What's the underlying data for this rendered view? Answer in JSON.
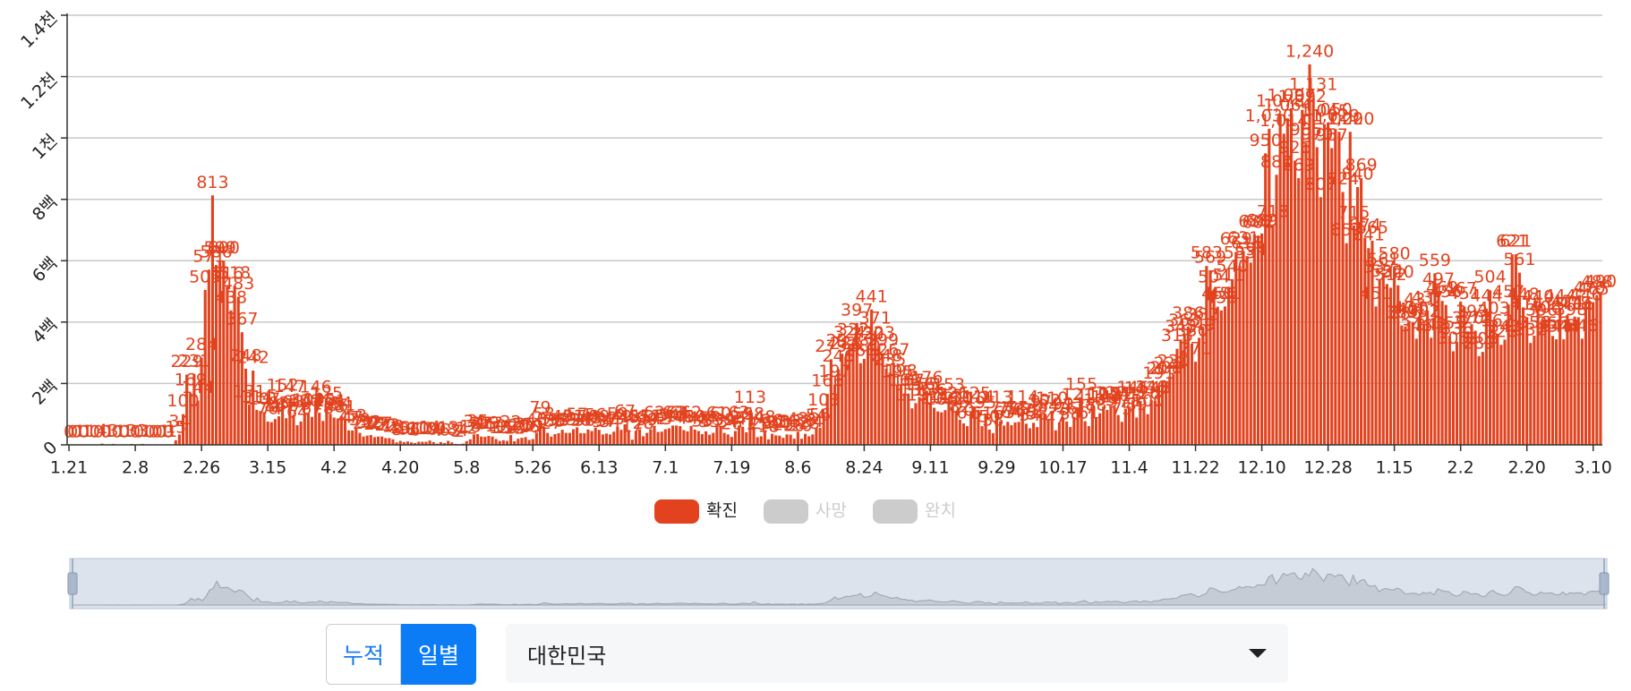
{
  "chart_data": {
    "type": "bar",
    "color": "#e2431e",
    "ylim": [
      0,
      1400
    ],
    "yticks": [
      0,
      {
        "value": 200,
        "label": "2백"
      },
      {
        "value": 400,
        "label": "4백"
      },
      {
        "value": 600,
        "label": "6백"
      },
      {
        "value": 800,
        "label": "8백"
      },
      {
        "value": 1000,
        "label": "1천"
      },
      {
        "value": 1200,
        "label": "1.2천"
      },
      {
        "value": 1400,
        "label": "1.4천"
      }
    ],
    "grid": true,
    "legend": [
      {
        "name": "확진",
        "color": "#e2431e",
        "hidden": false
      },
      {
        "name": "사망",
        "color": "#cccccc",
        "hidden": true
      },
      {
        "name": "완치",
        "color": "#cccccc",
        "hidden": true
      }
    ],
    "categories": [
      "1.21",
      null,
      null,
      null,
      null,
      null,
      null,
      null,
      null,
      null,
      null,
      null,
      null,
      null,
      null,
      null,
      null,
      null,
      "2.8",
      null,
      null,
      null,
      null,
      null,
      null,
      null,
      null,
      null,
      null,
      null,
      null,
      null,
      null,
      null,
      null,
      null,
      "2.26",
      null,
      null,
      null,
      null,
      null,
      null,
      null,
      null,
      null,
      null,
      null,
      null,
      null,
      null,
      null,
      null,
      null,
      "3.15",
      null,
      null,
      null,
      null,
      null,
      null,
      null,
      null,
      null,
      null,
      null,
      null,
      null,
      null,
      null,
      null,
      null,
      "4.2",
      null,
      null,
      null,
      null,
      null,
      null,
      null,
      null,
      null,
      null,
      null,
      null,
      null,
      null,
      null,
      null,
      null,
      "4.20",
      null,
      null,
      null,
      null,
      null,
      null,
      null,
      null,
      null,
      null,
      null,
      null,
      null,
      null,
      null,
      null,
      null,
      "5.8",
      null,
      null,
      null,
      null,
      null,
      null,
      null,
      null,
      null,
      null,
      null,
      null,
      null,
      null,
      null,
      null,
      null,
      "5.26",
      null,
      null,
      null,
      null,
      null,
      null,
      null,
      null,
      null,
      null,
      null,
      null,
      null,
      null,
      null,
      null,
      null,
      "6.13",
      null,
      null,
      null,
      null,
      null,
      null,
      null,
      null,
      null,
      null,
      null,
      null,
      null,
      null,
      null,
      null,
      null,
      "7.1",
      null,
      null,
      null,
      null,
      null,
      null,
      null,
      null,
      null,
      null,
      null,
      null,
      null,
      null,
      null,
      null,
      null,
      "7.19",
      null,
      null,
      null,
      null,
      null,
      null,
      null,
      null,
      null,
      null,
      null,
      null,
      null,
      null,
      null,
      null,
      null,
      "8.6",
      null,
      null,
      null,
      null,
      null,
      null,
      null,
      null,
      null,
      null,
      null,
      null,
      null,
      null,
      null,
      null,
      null,
      "8.24",
      null,
      null,
      null,
      null,
      null,
      null,
      null,
      null,
      null,
      null,
      null,
      null,
      null,
      null,
      null,
      null,
      null,
      "9.11",
      null,
      null,
      null,
      null,
      null,
      null,
      null,
      null,
      null,
      null,
      null,
      null,
      null,
      null,
      null,
      null,
      null,
      "9.29",
      null,
      null,
      null,
      null,
      null,
      null,
      null,
      null,
      null,
      null,
      null,
      null,
      null,
      null,
      null,
      null,
      null,
      "10.17",
      null,
      null,
      null,
      null,
      null,
      null,
      null,
      null,
      null,
      null,
      null,
      null,
      null,
      null,
      null,
      null,
      null,
      "11.4",
      null,
      null,
      null,
      null,
      null,
      null,
      null,
      null,
      null,
      null,
      null,
      null,
      null,
      null,
      null,
      null,
      null,
      "11.22",
      null,
      null,
      null,
      null,
      null,
      null,
      null,
      null,
      null,
      null,
      null,
      null,
      null,
      null,
      null,
      null,
      null,
      "12.10",
      null,
      null,
      null,
      null,
      null,
      null,
      null,
      null,
      null,
      null,
      null,
      null,
      null,
      null,
      null,
      null,
      null,
      "12.28",
      null,
      null,
      null,
      null,
      null,
      null,
      null,
      null,
      null,
      null,
      null,
      null,
      null,
      null,
      null,
      null,
      null,
      "1.15",
      null,
      null,
      null,
      null,
      null,
      null,
      null,
      null,
      null,
      null,
      null,
      null,
      null,
      null,
      null,
      null,
      null,
      "2.2",
      null,
      null,
      null,
      null,
      null,
      null,
      null,
      null,
      null,
      null,
      null,
      null,
      null,
      null,
      null,
      null,
      null,
      "2.20",
      null,
      null,
      null,
      null,
      null,
      null,
      null,
      null,
      null,
      null,
      null,
      null,
      null,
      null,
      null,
      null,
      null,
      "3.10",
      null,
      null
    ],
    "values": [
      0,
      0,
      0,
      1,
      0,
      1,
      1,
      0,
      0,
      4,
      0,
      1,
      3,
      0,
      1,
      0,
      1,
      3,
      0,
      0,
      3,
      1,
      0,
      0,
      0,
      0,
      1,
      0,
      1,
      15,
      34,
      100,
      229,
      169,
      231,
      144,
      284,
      505,
      571,
      813,
      586,
      599,
      600,
      516,
      438,
      518,
      483,
      367,
      248,
      131,
      242,
      114,
      110,
      107,
      76,
      74,
      84,
      93,
      152,
      87,
      147,
      98,
      64,
      76,
      100,
      104,
      91,
      146,
      105,
      78,
      125,
      101,
      89,
      86,
      94,
      81,
      47,
      47,
      53,
      39,
      27,
      30,
      32,
      25,
      27,
      27,
      22,
      22,
      18,
      8,
      13,
      9,
      11,
      8,
      6,
      10,
      10,
      10,
      14,
      9,
      4,
      9,
      6,
      13,
      8,
      3,
      2,
      4,
      12,
      18,
      34,
      35,
      27,
      26,
      29,
      27,
      19,
      13,
      15,
      13,
      32,
      12,
      20,
      23,
      25,
      16,
      19,
      40,
      79,
      58,
      39,
      27,
      35,
      38,
      49,
      39,
      39,
      51,
      57,
      38,
      38,
      50,
      45,
      56,
      49,
      34,
      37,
      34,
      43,
      59,
      49,
      67,
      48,
      17,
      46,
      51,
      28,
      39,
      51,
      62,
      42,
      43,
      51,
      54,
      63,
      63,
      61,
      48,
      44,
      62,
      50,
      45,
      35,
      44,
      33,
      39,
      61,
      60,
      39,
      34,
      26,
      45,
      63,
      59,
      41,
      113,
      58,
      25,
      28,
      48,
      18,
      36,
      31,
      30,
      23,
      34,
      33,
      20,
      43,
      20,
      36,
      28,
      34,
      54,
      56,
      103,
      166,
      279,
      197,
      246,
      297,
      288,
      324,
      332,
      397,
      266,
      280,
      320,
      441,
      371,
      323,
      299,
      248,
      235,
      267,
      195,
      198,
      168,
      167,
      119,
      136,
      156,
      155,
      176,
      136,
      121,
      109,
      106,
      113,
      153,
      126,
      110,
      82,
      70,
      61,
      110,
      125,
      114,
      61,
      95,
      50,
      38,
      113,
      77,
      63,
      75,
      64,
      73,
      75,
      114,
      69,
      54,
      72,
      58,
      97,
      102,
      84,
      110,
      47,
      73,
      91,
      76,
      58,
      91,
      121,
      155,
      77,
      61,
      119,
      88,
      103,
      125,
      114,
      127,
      124,
      97,
      75,
      118,
      125,
      145,
      89,
      143,
      126,
      100,
      146,
      143,
      191,
      205,
      208,
      223,
      230,
      313,
      343,
      363,
      386,
      330,
      271,
      349,
      382,
      583,
      569,
      504,
      450,
      438,
      451,
      511,
      540,
      629,
      583,
      631,
      615,
      594,
      686,
      682,
      689,
      950,
      1030,
      718,
      880,
      1078,
      1014,
      1064,
      1097,
      926,
      869,
      1092,
      985,
      1240,
      1131,
      970,
      807,
      1045,
      1050,
      967,
      1029,
      1020,
      824,
      657,
      1020,
      715,
      840,
      869,
      674,
      641,
      665,
      451,
      537,
      561,
      524,
      512,
      580,
      520,
      389,
      386,
      404,
      400,
      346,
      431,
      392,
      437,
      349,
      559,
      497,
      469,
      456,
      355,
      305,
      336,
      467,
      451,
      370,
      393,
      372,
      289,
      303,
      444,
      504,
      403,
      362,
      326,
      343,
      457,
      621,
      621,
      561,
      448,
      416,
      332,
      356,
      440,
      396,
      406,
      415,
      355,
      344,
      444,
      344,
      424,
      398,
      418,
      416,
      346,
      446,
      470,
      465,
      488,
      490
    ],
    "value_labels": [
      "0",
      "0",
      "0",
      "1",
      "0",
      "1",
      "1",
      "0",
      "0",
      "4",
      "0",
      "1",
      "3",
      "0",
      "1",
      "0",
      "1",
      "3",
      "0",
      "0",
      "3",
      "1",
      "0",
      "0",
      "0",
      "0",
      "1",
      "0",
      "1",
      "15",
      "34",
      "100",
      "229",
      "169",
      "231",
      "144",
      "284",
      "505",
      "571",
      "813",
      "586",
      "599",
      "600",
      "516",
      "438",
      "518",
      "483",
      "367",
      "248",
      "131",
      "242",
      "114",
      "110",
      "107",
      "76",
      "74",
      "84",
      "93",
      "152",
      "87",
      "147",
      "98",
      "64",
      "76",
      "100",
      "104",
      "91",
      "146",
      "105",
      "78",
      "125",
      "101",
      "89",
      "86",
      "94",
      "81",
      "47",
      "47",
      "53",
      "39",
      "27",
      "30",
      "32",
      "25",
      "27",
      "27",
      "22",
      "22",
      "18",
      "8",
      "13",
      "9",
      "11",
      "8",
      "6",
      "10",
      "10",
      "10",
      "14",
      "9",
      "4",
      "9",
      "6",
      "13",
      "8",
      "3",
      "2",
      "4",
      "12",
      "18",
      "34",
      "35",
      "27",
      "26",
      "29",
      "27",
      "19",
      "13",
      "15",
      "13",
      "32",
      "12",
      "20",
      "23",
      "25",
      "16",
      "19",
      "40",
      "79",
      "58",
      "39",
      "27",
      "35",
      "38",
      "49",
      "39",
      "39",
      "51",
      "57",
      "38",
      "38",
      "50",
      "45",
      "56",
      "49",
      "34",
      "37",
      "34",
      "43",
      "59",
      "49",
      "67",
      "48",
      "17",
      "46",
      "51",
      "28",
      "39",
      "51",
      "62",
      "42",
      "43",
      "51",
      "54",
      "63",
      "63",
      "61",
      "48",
      "44",
      "62",
      "50",
      "45",
      "35",
      "44",
      "33",
      "39",
      "61",
      "60",
      "39",
      "34",
      "26",
      "45",
      "63",
      "59",
      "41",
      "113",
      "58",
      "25",
      "28",
      "48",
      "18",
      "36",
      "31",
      "30",
      "23",
      "34",
      "33",
      "20",
      "43",
      "20",
      "36",
      "28",
      "34",
      "54",
      "56",
      "103",
      "166",
      "279",
      "197",
      "246",
      "297",
      "288",
      "324",
      "332",
      "397",
      "266",
      "280",
      "320",
      "441",
      "371",
      "323",
      "299",
      "248",
      "235",
      "267",
      "195",
      "198",
      "168",
      "167",
      "119",
      "136",
      "156",
      "155",
      "176",
      "136",
      "121",
      "109",
      "106",
      "113",
      "153",
      "126",
      "110",
      "82",
      "70",
      "61",
      "110",
      "125",
      "114",
      "61",
      "95",
      "50",
      "38",
      "113",
      "77",
      "63",
      "75",
      "64",
      "73",
      "75",
      "114",
      "69",
      "54",
      "72",
      "58",
      "97",
      "102",
      "84",
      "110",
      "47",
      "73",
      "91",
      "76",
      "58",
      "91",
      "121",
      "155",
      "77",
      "61",
      "119",
      "88",
      "103",
      "125",
      "114",
      "127",
      "124",
      "97",
      "75",
      "118",
      "125",
      "145",
      "89",
      "143",
      "126",
      "100",
      "146",
      "143",
      "191",
      "205",
      "208",
      "223",
      "230",
      "313",
      "343",
      "363",
      "386",
      "330",
      "271",
      "349",
      "382",
      "583",
      "569",
      "504",
      "450",
      "438",
      "451",
      "511",
      "540",
      "629",
      "583",
      "631",
      "615",
      "594",
      "686",
      "682",
      "689",
      "950",
      "1,030",
      "718",
      "880",
      "1,078",
      "1,014",
      "1,064",
      "1,097",
      "926",
      "869",
      "1,092",
      "985",
      "1,240",
      "1,131",
      "970",
      "807",
      "1,045",
      "1,050",
      "967",
      "1,029",
      "1,020",
      "824",
      "657",
      "1,020",
      "715",
      "840",
      "869",
      "674",
      "641",
      "665",
      "451",
      "537",
      "561",
      "524",
      "512",
      "580",
      "520",
      "389",
      "386",
      "404",
      "400",
      "346",
      "431",
      "392",
      "437",
      "349",
      "559",
      "497",
      "469",
      "456",
      "355",
      "305",
      "336",
      "467",
      "451",
      "370",
      "393",
      "372",
      "289",
      "303",
      "444",
      "504",
      "403",
      "362",
      "326",
      "343",
      "457",
      "621",
      "621",
      "561",
      "448",
      "416",
      "332",
      "356",
      "440",
      "396",
      "406",
      "415",
      "355",
      "344",
      "444",
      "344",
      "424",
      "398",
      "418",
      "416",
      "346",
      "446",
      "470",
      "465",
      "488",
      "490"
    ]
  },
  "controls": {
    "buttons": [
      {
        "label": "누적",
        "active": false
      },
      {
        "label": "일별",
        "active": true
      }
    ],
    "region_select": "대한민국"
  }
}
